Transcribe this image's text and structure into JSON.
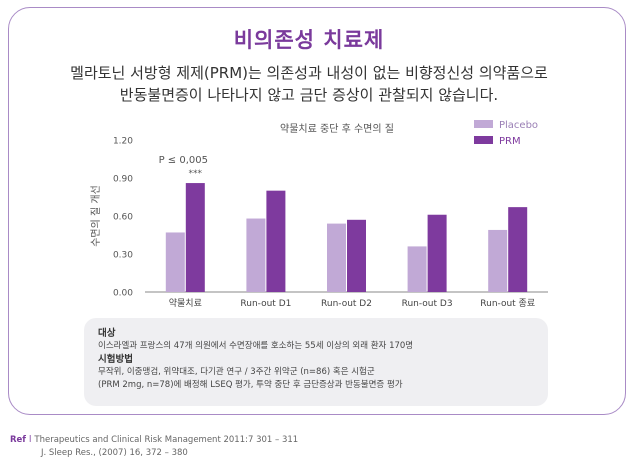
{
  "header": {
    "title": "비의존성 치료제",
    "desc_line1": "멜라토닌 서방형 제제(PRM)는 의존성과 내성이 없는 비향정신성 의약품으로",
    "desc_line2": "반동불면증이 나타나지 않고 금단 증상이 관찰되지 않습니다."
  },
  "chart_data": {
    "type": "bar",
    "title": "약물치료 중단 후 수면의 질",
    "xlabel": "",
    "ylabel": "수면의 질 개선",
    "ylim": [
      0,
      1.2
    ],
    "yticks": [
      "0.00",
      "0.30",
      "0.60",
      "0.90",
      "1.20"
    ],
    "grid": false,
    "legend_position": "top-right",
    "categories": [
      "약물치료",
      "Run-out D1",
      "Run-out D2",
      "Run-out D3",
      "Run-out 종료"
    ],
    "series": [
      {
        "name": "Placebo",
        "color": "#c1a9d6",
        "values": [
          0.47,
          0.58,
          0.54,
          0.36,
          0.49
        ]
      },
      {
        "name": "PRM",
        "color": "#7e3a9e",
        "values": [
          0.86,
          0.8,
          0.57,
          0.61,
          0.67
        ]
      }
    ],
    "annotations": {
      "pvalue": "P ≤ 0,005",
      "stars": "***"
    }
  },
  "info": {
    "heading1": "대상",
    "line1": "이스라엘과 프랑스의 47개 의원에서 수면장애를 호소하는 55세 이상의 외래 환자 170명",
    "heading2": "시험방법",
    "line2": "무작위, 이중맹검, 위약대조, 다기관 연구 / 3주간 위약군 (n=86) 혹은 시험군",
    "line3": "(PRM 2mg, n=78)에 배정해 LSEQ 평가, 투약 중단 후 금단증상과 반동불면증 평가"
  },
  "reference": {
    "label": "Ref",
    "separator": "l",
    "line1": "Therapeutics and Clinical Risk Management 2011:7 301 – 311",
    "line2": "J. Sleep Res., (2007) 16, 372 – 380"
  }
}
